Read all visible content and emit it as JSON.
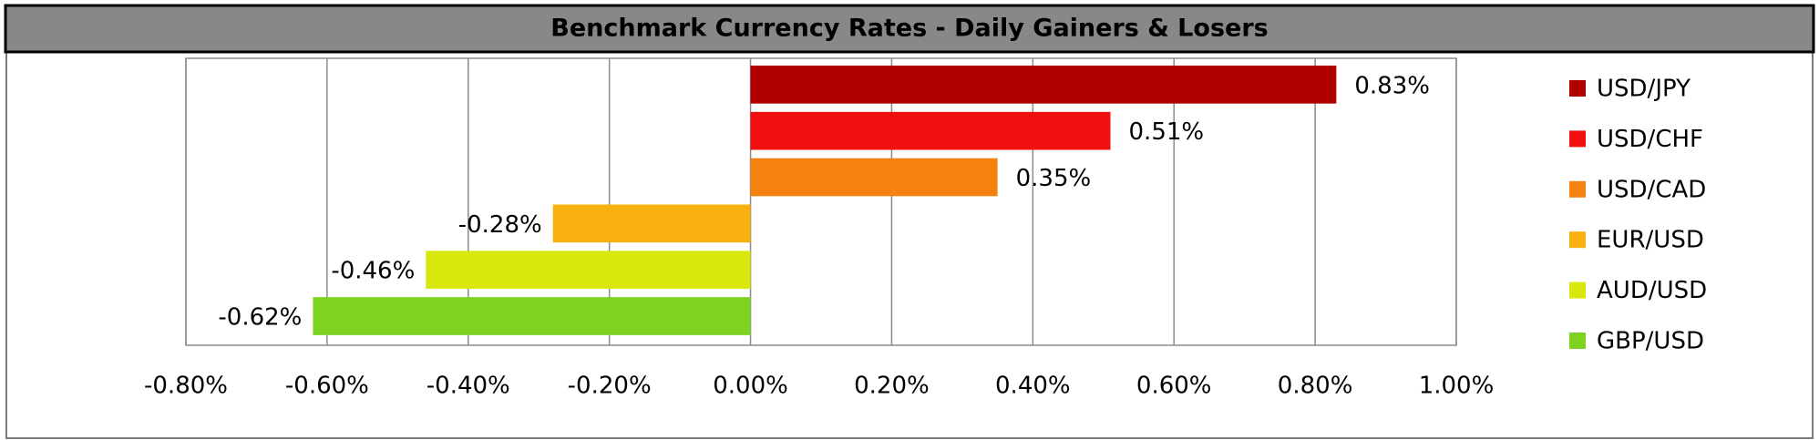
{
  "chart_data": {
    "type": "bar",
    "title": "Benchmark Currency Rates - Daily Gainers & Losers",
    "series": [
      {
        "name": "USD/JPY",
        "color": "#b00000",
        "values": [
          0.83
        ],
        "value_labels": [
          "0.83%"
        ]
      },
      {
        "name": "USD/CHF",
        "color": "#f01010",
        "values": [
          0.51
        ],
        "value_labels": [
          "0.51%"
        ]
      },
      {
        "name": "USD/CAD",
        "color": "#f5820f",
        "values": [
          0.35
        ],
        "value_labels": [
          "0.35%"
        ]
      },
      {
        "name": "EUR/USD",
        "color": "#f8b010",
        "values": [
          -0.28
        ],
        "value_labels": [
          "-0.28%"
        ]
      },
      {
        "name": "AUD/USD",
        "color": "#d8e80c",
        "values": [
          -0.46
        ],
        "value_labels": [
          "-0.46%"
        ]
      },
      {
        "name": "GBP/USD",
        "color": "#7ed321",
        "values": [
          -0.62
        ],
        "value_labels": [
          "-0.62%"
        ]
      }
    ],
    "xlim": [
      -0.8,
      1.0
    ],
    "xticks": [
      {
        "value": -0.8,
        "label": "-0.80%"
      },
      {
        "value": -0.6,
        "label": "-0.60%"
      },
      {
        "value": -0.4,
        "label": "-0.40%"
      },
      {
        "value": -0.2,
        "label": "-0.20%"
      },
      {
        "value": 0,
        "label": "0.00%"
      },
      {
        "value": 0.2,
        "label": "0.20%"
      },
      {
        "value": 0.4,
        "label": "0.40%"
      },
      {
        "value": 0.6,
        "label": "0.60%"
      },
      {
        "value": 0.8,
        "label": "0.80%"
      },
      {
        "value": 1.0,
        "label": "1.00%"
      }
    ],
    "grid": true,
    "legend": "right"
  }
}
